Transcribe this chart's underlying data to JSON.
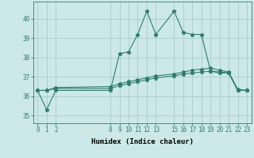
{
  "xlabel": "Humidex (Indice chaleur)",
  "background_color": "#cce8e8",
  "line_color": "#2e7d6e",
  "grid_color": "#aacccc",
  "x_ticks": [
    0,
    1,
    2,
    8,
    9,
    10,
    11,
    12,
    13,
    15,
    16,
    17,
    18,
    19,
    20,
    21,
    22,
    23
  ],
  "ylim": [
    34.6,
    40.9
  ],
  "xlim": [
    -0.5,
    23.5
  ],
  "series": [
    {
      "x": [
        0,
        1,
        2,
        8,
        9,
        10,
        11,
        12,
        13,
        15,
        16,
        17,
        18,
        19,
        20,
        21,
        22,
        23
      ],
      "y": [
        36.3,
        35.3,
        36.3,
        36.3,
        38.2,
        38.3,
        39.2,
        40.4,
        39.2,
        40.4,
        39.3,
        39.2,
        39.2,
        37.3,
        37.2,
        37.2,
        36.3,
        36.3
      ]
    },
    {
      "x": [
        0,
        1,
        2,
        8,
        9,
        10,
        11,
        12,
        13,
        15,
        16,
        17,
        18,
        19,
        20,
        21,
        22,
        23
      ],
      "y": [
        36.3,
        36.3,
        36.4,
        36.4,
        36.55,
        36.65,
        36.75,
        36.85,
        36.95,
        37.05,
        37.15,
        37.2,
        37.25,
        37.3,
        37.25,
        37.2,
        36.3,
        36.3
      ]
    },
    {
      "x": [
        0,
        1,
        2,
        8,
        9,
        10,
        11,
        12,
        13,
        15,
        16,
        17,
        18,
        19,
        20,
        21,
        22,
        23
      ],
      "y": [
        36.3,
        36.3,
        36.45,
        36.5,
        36.65,
        36.75,
        36.85,
        36.95,
        37.05,
        37.15,
        37.25,
        37.35,
        37.4,
        37.45,
        37.35,
        37.25,
        36.35,
        36.3
      ]
    }
  ],
  "yticks": [
    35,
    36,
    37,
    38,
    39,
    40
  ],
  "tick_fontsize": 5.5,
  "xlabel_fontsize": 6.5
}
